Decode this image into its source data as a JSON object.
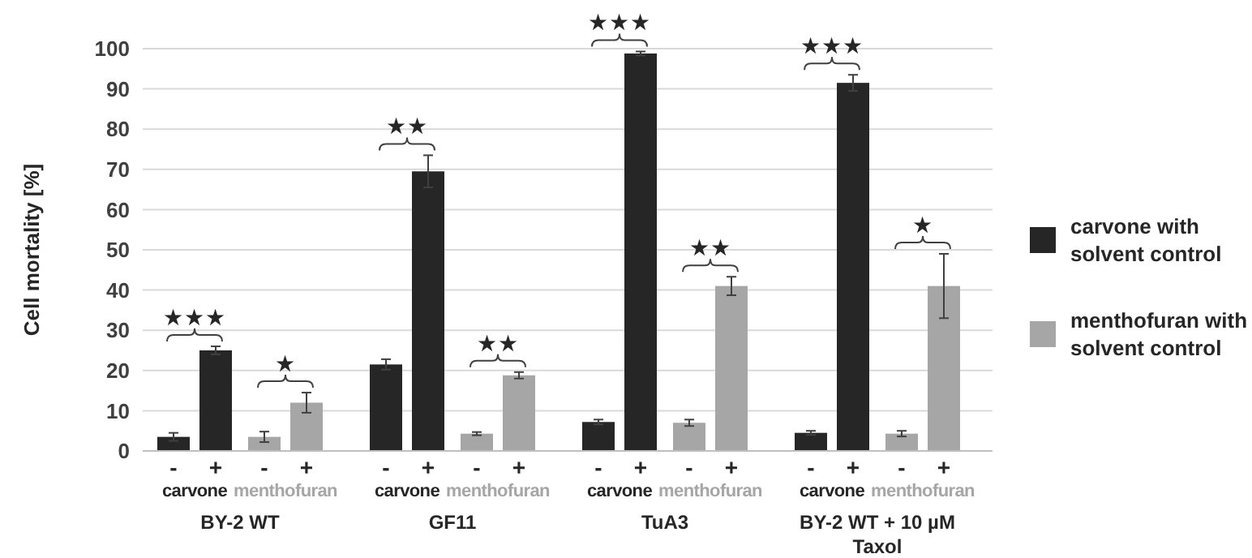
{
  "chart_data": {
    "type": "bar",
    "ylabel": "Cell mortality [%]",
    "categories": [
      "-",
      "+",
      "-",
      "+",
      "-",
      "+",
      "-",
      "+",
      "-",
      "+",
      "-",
      "+",
      "-",
      "+",
      "-",
      "+"
    ],
    "series": [
      {
        "name": "carvone with solvent control",
        "color": "#262626",
        "values": [
          3.5,
          25,
          null,
          null,
          21.5,
          69.5,
          null,
          null,
          7.2,
          98.8,
          null,
          null,
          4.5,
          91.5,
          null,
          null
        ],
        "errors": [
          1,
          1,
          null,
          null,
          1.3,
          4,
          null,
          null,
          0.6,
          0.5,
          null,
          null,
          0.5,
          2,
          null,
          null
        ]
      },
      {
        "name": "menthofuran with solvent control",
        "color": "#a6a6a6",
        "values": [
          null,
          null,
          3.5,
          12,
          null,
          null,
          4.3,
          18.8,
          null,
          null,
          7,
          41,
          null,
          null,
          4.3,
          41
        ],
        "errors": [
          null,
          null,
          1.3,
          2.5,
          null,
          null,
          0.4,
          0.8,
          null,
          null,
          0.8,
          2.3,
          null,
          null,
          0.7,
          8
        ]
      }
    ],
    "ylim": [
      0,
      100
    ],
    "yticks": [
      0,
      10,
      20,
      30,
      40,
      50,
      60,
      70,
      80,
      90,
      100
    ],
    "grid": "y",
    "legend": "right",
    "annotations": [
      "carvone",
      "menthofuran",
      "carvone",
      "menthofuran",
      "carvone",
      "menthofuran",
      "carvone",
      "menthofuran",
      "BY-2 WT",
      "GF11",
      "TuA3",
      "BY-2 WT + 10 µM Taxol",
      "★★★",
      "★",
      "★★",
      "★★",
      "★★★",
      "★★",
      "★★★",
      "★"
    ]
  }
}
